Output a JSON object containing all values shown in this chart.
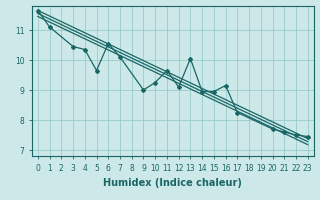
{
  "xlabel": "Humidex (Indice chaleur)",
  "bg_color": "#cce8e8",
  "grid_color": "#99cccc",
  "line_color": "#1a6666",
  "xlim": [
    -0.5,
    23.5
  ],
  "ylim": [
    6.8,
    11.8
  ],
  "yticks": [
    7,
    8,
    9,
    10,
    11
  ],
  "xticks": [
    0,
    1,
    2,
    3,
    4,
    5,
    6,
    7,
    8,
    9,
    10,
    11,
    12,
    13,
    14,
    15,
    16,
    17,
    18,
    19,
    20,
    21,
    22,
    23
  ],
  "y_jagged": [
    11.65,
    11.1,
    null,
    10.45,
    10.35,
    9.65,
    10.55,
    10.1,
    null,
    9.0,
    9.25,
    9.65,
    9.1,
    10.05,
    8.95,
    8.95,
    9.15,
    8.25,
    null,
    null,
    7.7,
    7.6,
    7.5,
    7.45
  ],
  "y_reg_start": 11.65,
  "y_reg_end": 7.38,
  "y_reg2_start": 11.55,
  "y_reg2_end": 7.28,
  "y_reg3_start": 11.45,
  "y_reg3_end": 7.18,
  "marker_x": [
    0,
    1,
    3,
    4,
    5,
    6,
    7,
    9,
    10,
    11,
    12,
    13,
    14,
    15,
    16,
    17,
    20,
    21,
    22,
    23
  ],
  "marker_y": [
    11.65,
    11.1,
    10.45,
    10.35,
    9.65,
    10.55,
    10.1,
    9.0,
    9.25,
    9.65,
    9.1,
    10.05,
    8.95,
    8.95,
    9.15,
    8.25,
    7.7,
    7.6,
    7.5,
    7.45
  ]
}
